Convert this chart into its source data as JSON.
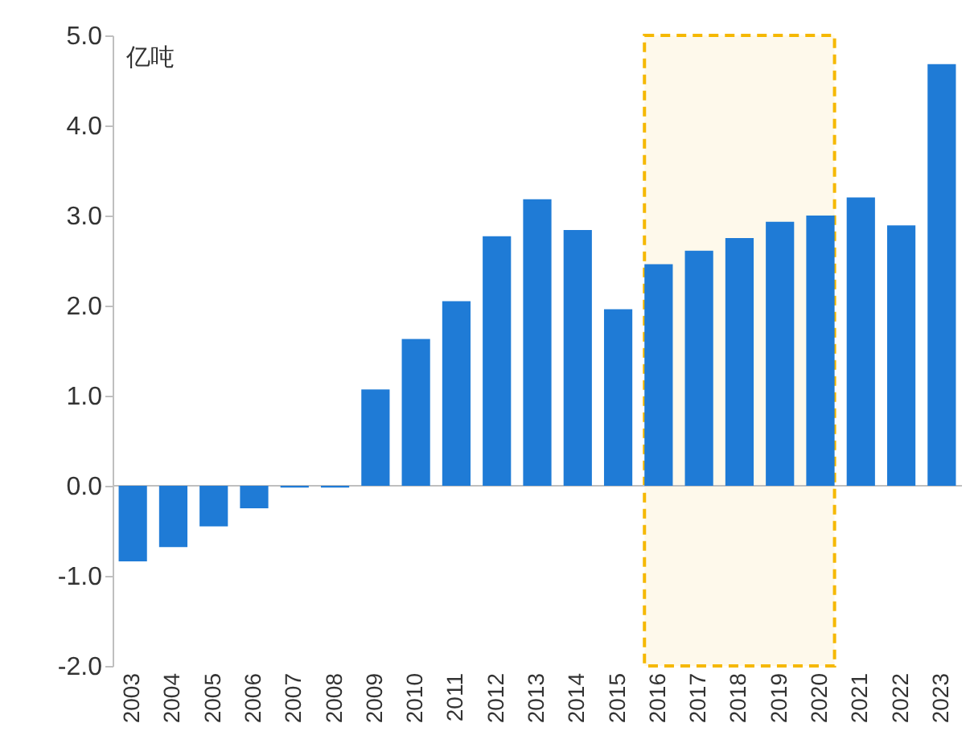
{
  "chart_data": {
    "type": "bar",
    "ylabel": "亿吨",
    "categories": [
      "2003",
      "2004",
      "2005",
      "2006",
      "2007",
      "2008",
      "2009",
      "2010",
      "2011",
      "2012",
      "2013",
      "2014",
      "2015",
      "2016",
      "2017",
      "2018",
      "2019",
      "2020",
      "2021",
      "2022",
      "2023"
    ],
    "values": [
      -0.84,
      -0.68,
      -0.45,
      -0.25,
      -0.02,
      -0.02,
      1.07,
      1.63,
      2.05,
      2.77,
      3.18,
      2.84,
      1.96,
      2.46,
      2.61,
      2.75,
      2.93,
      3.0,
      3.2,
      2.89,
      4.68
    ],
    "color": "#1f7bd6",
    "ylim": [
      -2,
      5
    ],
    "yticks": [
      {
        "value": -2,
        "label": "-2.0"
      },
      {
        "value": -1,
        "label": "-1.0"
      },
      {
        "value": 0,
        "label": "0.0"
      },
      {
        "value": 1,
        "label": "1.0"
      },
      {
        "value": 2,
        "label": "2.0"
      },
      {
        "value": 3,
        "label": "3.0"
      },
      {
        "value": 4,
        "label": "4.0"
      },
      {
        "value": 5,
        "label": "5.0"
      }
    ],
    "ref_lines": [
      {
        "axis": "y",
        "value": 0,
        "color": "#bfbfbf"
      }
    ],
    "bands": [
      {
        "axis": "x",
        "from": "2016",
        "to": "2020",
        "color": "#f5b800"
      }
    ]
  }
}
